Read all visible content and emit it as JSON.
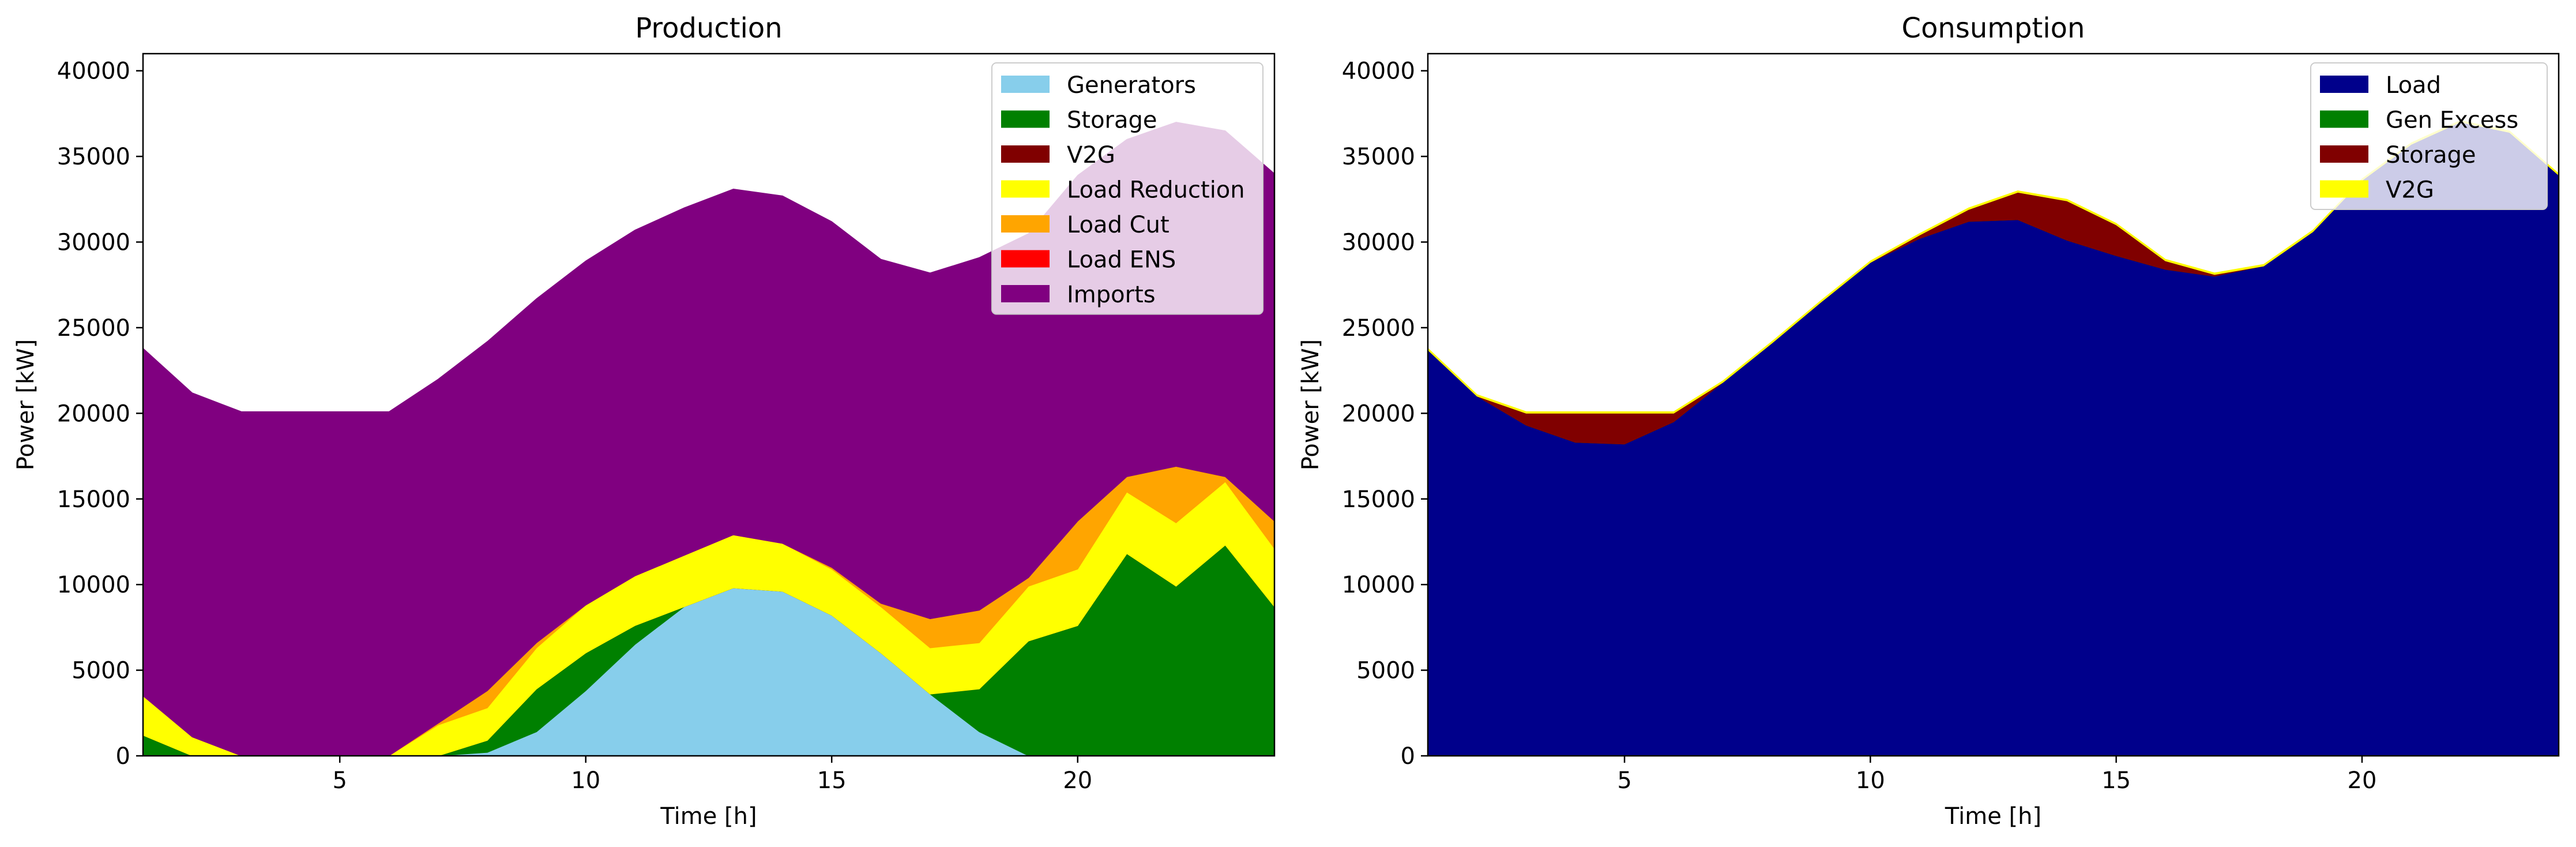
{
  "figure": {
    "charts": 2
  },
  "chart_data": [
    {
      "type": "area",
      "stacked": true,
      "title": "Production",
      "xlabel": "Time [h]",
      "ylabel": "Power [kW]",
      "xlim": [
        1,
        24
      ],
      "ylim": [
        0,
        41000
      ],
      "xticks": [
        5,
        10,
        15,
        20
      ],
      "yticks": [
        0,
        5000,
        10000,
        15000,
        20000,
        25000,
        30000,
        35000,
        40000
      ],
      "legend_position": "top-right",
      "grid": false,
      "x": [
        1,
        2,
        3,
        4,
        5,
        6,
        7,
        8,
        9,
        10,
        11,
        12,
        13,
        14,
        15,
        16,
        17,
        18,
        19,
        20,
        21,
        22,
        23,
        24
      ],
      "series": [
        {
          "name": "Generators",
          "color": "#87CEEB",
          "values": [
            0,
            0,
            0,
            0,
            0,
            0,
            0,
            200,
            1400,
            3800,
            6500,
            8700,
            9800,
            9600,
            8200,
            6000,
            3600,
            1400,
            0,
            0,
            0,
            0,
            0,
            0
          ]
        },
        {
          "name": "Storage",
          "color": "#008000",
          "values": [
            1200,
            0,
            0,
            0,
            0,
            0,
            0,
            700,
            2500,
            2200,
            1100,
            0,
            0,
            0,
            0,
            0,
            0,
            2500,
            6700,
            7600,
            11800,
            9900,
            12300,
            8700
          ]
        },
        {
          "name": "V2G",
          "color": "#800000",
          "values": [
            0,
            0,
            0,
            0,
            0,
            0,
            0,
            0,
            0,
            0,
            0,
            0,
            0,
            0,
            0,
            0,
            0,
            0,
            0,
            0,
            0,
            0,
            0,
            0
          ]
        },
        {
          "name": "Load Reduction",
          "color": "#FFFF00",
          "values": [
            2300,
            1100,
            0,
            0,
            0,
            0,
            1800,
            1900,
            2400,
            2800,
            2900,
            3000,
            3100,
            2800,
            2700,
            2700,
            2700,
            2700,
            3200,
            3300,
            3600,
            3700,
            3700,
            3400
          ]
        },
        {
          "name": "Load Cut",
          "color": "#FFA500",
          "values": [
            0,
            0,
            0,
            0,
            0,
            0,
            100,
            1000,
            300,
            0,
            0,
            0,
            0,
            0,
            100,
            200,
            1700,
            1900,
            500,
            2800,
            900,
            3300,
            300,
            1600
          ]
        },
        {
          "name": "Load ENS",
          "color": "#FF0000",
          "values": [
            0,
            0,
            0,
            0,
            0,
            0,
            0,
            0,
            0,
            0,
            0,
            0,
            0,
            0,
            0,
            0,
            0,
            0,
            0,
            0,
            0,
            0,
            0,
            0
          ]
        },
        {
          "name": "Imports",
          "color": "#800080",
          "values": [
            20300,
            20100,
            20100,
            20100,
            20100,
            20100,
            20100,
            20400,
            20100,
            20100,
            20200,
            20300,
            20200,
            20300,
            20200,
            20100,
            20200,
            20600,
            20100,
            20200,
            19700,
            20100,
            20200,
            20300
          ]
        }
      ]
    },
    {
      "type": "area",
      "stacked": true,
      "title": "Consumption",
      "xlabel": "Time [h]",
      "ylabel": "Power [kW]",
      "xlim": [
        1,
        24
      ],
      "ylim": [
        0,
        41000
      ],
      "xticks": [
        5,
        10,
        15,
        20
      ],
      "yticks": [
        0,
        5000,
        10000,
        15000,
        20000,
        25000,
        30000,
        35000,
        40000
      ],
      "legend_position": "top-right",
      "grid": false,
      "x": [
        1,
        2,
        3,
        4,
        5,
        6,
        7,
        8,
        9,
        10,
        11,
        12,
        13,
        14,
        15,
        16,
        17,
        18,
        19,
        20,
        21,
        22,
        23,
        24
      ],
      "series": [
        {
          "name": "Load",
          "color": "#00008B",
          "values": [
            23700,
            21000,
            19300,
            18300,
            18200,
            19500,
            21800,
            24100,
            26500,
            28800,
            30200,
            31200,
            31300,
            30100,
            29200,
            28400,
            28000,
            28600,
            30600,
            33600,
            35700,
            37000,
            36400,
            33900
          ]
        },
        {
          "name": "Gen Excess",
          "color": "#008000",
          "values": [
            0,
            0,
            0,
            0,
            0,
            0,
            0,
            0,
            0,
            0,
            0,
            0,
            0,
            0,
            0,
            0,
            0,
            0,
            0,
            0,
            0,
            0,
            0,
            0
          ]
        },
        {
          "name": "Storage",
          "color": "#800000",
          "values": [
            0,
            0,
            700,
            1700,
            1800,
            500,
            0,
            0,
            0,
            0,
            200,
            700,
            1600,
            2300,
            1800,
            500,
            100,
            0,
            0,
            0,
            0,
            0,
            0,
            0
          ]
        },
        {
          "name": "V2G",
          "color": "#FFFF00",
          "values": [
            100,
            100,
            100,
            100,
            100,
            100,
            100,
            100,
            100,
            100,
            100,
            100,
            100,
            100,
            100,
            100,
            100,
            100,
            100,
            100,
            100,
            100,
            100,
            100
          ]
        }
      ]
    }
  ]
}
